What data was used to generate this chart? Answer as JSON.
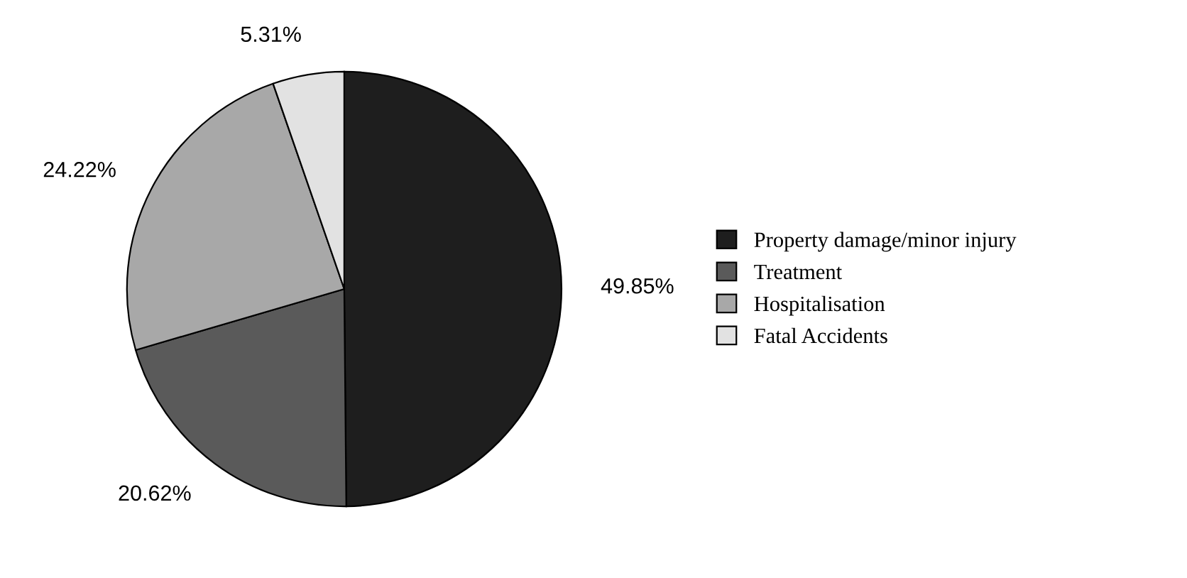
{
  "chart_data": {
    "type": "pie",
    "categories": [
      "Property damage/minor injury",
      "Treatment",
      "Hospitalisation",
      "Fatal Accidents"
    ],
    "values": [
      49.85,
      20.62,
      24.22,
      5.31
    ],
    "colors": [
      "#1e1e1e",
      "#5a5a5a",
      "#a8a8a8",
      "#e2e2e2"
    ],
    "value_labels": [
      "49.85%",
      "20.62%",
      "24.22%",
      "5.31%"
    ],
    "legend": "right"
  }
}
